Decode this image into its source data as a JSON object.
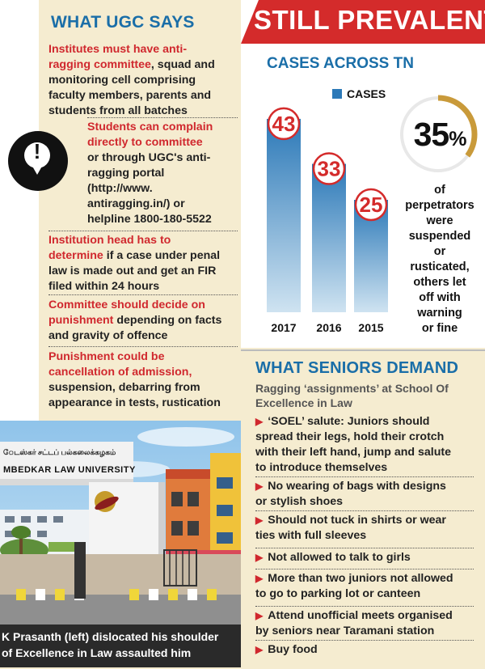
{
  "ugc": {
    "title": "WHAT UGC SAYS",
    "points": [
      {
        "lines": [
          [
            [
              "Institutes must have anti-",
              true
            ]
          ],
          [
            [
              "ragging committee",
              true
            ],
            [
              ", squad and",
              false
            ]
          ],
          [
            [
              "monitoring cell comprising",
              false
            ]
          ],
          [
            [
              "faculty members, parents and",
              false
            ]
          ],
          [
            [
              "students from all batches",
              false
            ]
          ]
        ]
      },
      {
        "lines": [
          [
            [
              "Students can complain",
              true
            ]
          ],
          [
            [
              "directly to committee",
              true
            ]
          ],
          [
            [
              "or through UGC's anti-",
              false
            ]
          ],
          [
            [
              "ragging portal",
              false
            ]
          ],
          [
            [
              "(http://www.",
              false
            ]
          ],
          [
            [
              "antiragging.in/)",
              false
            ],
            [
              " or",
              false
            ]
          ],
          [
            [
              "helpline 1800-180-5522",
              false
            ]
          ]
        ]
      },
      {
        "lines": [
          [
            [
              "Institution head has to",
              true
            ]
          ],
          [
            [
              "determine",
              true
            ],
            [
              " if a case under penal",
              false
            ]
          ],
          [
            [
              "law is made out and get an FIR",
              false
            ]
          ],
          [
            [
              "filed within 24 hours",
              false
            ]
          ]
        ]
      },
      {
        "lines": [
          [
            [
              "Committee should decide on",
              true
            ]
          ],
          [
            [
              "punishment",
              true
            ],
            [
              " depending on facts",
              false
            ]
          ],
          [
            [
              "and gravity of offence",
              false
            ]
          ]
        ]
      },
      {
        "lines": [
          [
            [
              "Punishment could be",
              true
            ]
          ],
          [
            [
              "cancellation of admission,",
              true
            ]
          ],
          [
            [
              "suspension, debarring from",
              false
            ]
          ],
          [
            [
              "appearance in tests, rustication",
              false
            ]
          ]
        ]
      }
    ]
  },
  "banner": {
    "title": "STILL PREVALENT"
  },
  "chart_data": {
    "type": "bar",
    "title": "CASES ACROSS TN",
    "categories": [
      "2017",
      "2016",
      "2015"
    ],
    "series": [
      {
        "name": "CASES",
        "values": [
          43,
          33,
          25
        ]
      }
    ],
    "ylim": [
      0,
      50
    ],
    "legend": "top-right",
    "grid": false
  },
  "stat": {
    "value": "35",
    "unit": "%",
    "fraction": 0.35,
    "description_lines": [
      "of",
      "perpetrators",
      "were",
      "suspended",
      "or",
      "rusticated,",
      "others let",
      "off with",
      "warning",
      "or fine"
    ]
  },
  "seniors": {
    "title": "WHAT SENIORS DEMAND",
    "subtitle_lines": [
      "Ragging ‘assignments’ at School Of",
      "Excellence in Law"
    ],
    "items": [
      [
        "‘SOEL’ salute: Juniors should",
        "spread their legs, hold their crotch",
        "with their left hand, jump and salute",
        "to introduce themselves"
      ],
      [
        "No wearing of bags with designs",
        "or stylish shoes"
      ],
      [
        "Should not tuck in shirts or wear",
        "ties with full sleeves"
      ],
      [
        "Not allowed to talk to girls"
      ],
      [
        "More than two juniors not allowed",
        "to go to parking lot or canteen"
      ],
      [
        "Attend unofficial meets organised",
        "by seniors near Taramani station"
      ],
      [
        "Buy food"
      ]
    ]
  },
  "photo": {
    "sign_tamil": "ேடஸ்கர் சட்டப் பல்கலைக்கழகம்",
    "sign_english": "MBEDKAR LAW UNIVERSITY",
    "caption_lines": [
      "K Prasanth (left) dislocated his shoulder",
      "of Excellence in Law assaulted him"
    ]
  },
  "colors": {
    "accent_blue": "#1a6ea8",
    "accent_red": "#d42b2b",
    "panel_beige": "#f5ecd0",
    "bar_top": "#2c79b8",
    "bar_bottom": "#cfe3f1",
    "ring_gold": "#c99a3a"
  }
}
